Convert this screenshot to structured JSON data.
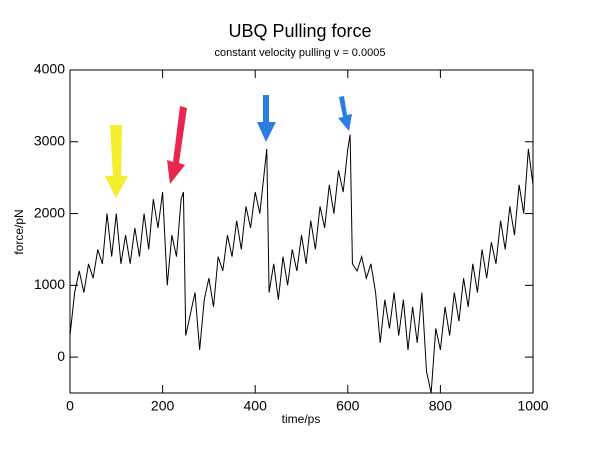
{
  "chart_data": {
    "type": "line",
    "title": "UBQ Pulling force",
    "subtitle": "constant velocity pulling v = 0.0005",
    "x_label": "time/ps",
    "y_label": "force/pN",
    "color": "#000000",
    "x": [
      0,
      10,
      20,
      30,
      40,
      50,
      60,
      70,
      80,
      90,
      100,
      110,
      120,
      130,
      140,
      150,
      160,
      170,
      180,
      190,
      200,
      210,
      220,
      230,
      240,
      245,
      250,
      260,
      270,
      280,
      290,
      300,
      310,
      320,
      330,
      340,
      350,
      360,
      370,
      380,
      390,
      400,
      410,
      420,
      425,
      430,
      440,
      450,
      460,
      470,
      480,
      490,
      500,
      510,
      520,
      530,
      540,
      550,
      560,
      570,
      580,
      590,
      600,
      605,
      610,
      620,
      630,
      640,
      650,
      660,
      670,
      680,
      690,
      700,
      710,
      720,
      730,
      740,
      750,
      760,
      770,
      780,
      790,
      800,
      810,
      820,
      830,
      840,
      850,
      860,
      870,
      880,
      890,
      900,
      910,
      920,
      930,
      940,
      950,
      960,
      970,
      980,
      990,
      1000
    ],
    "values": [
      300,
      900,
      1200,
      900,
      1300,
      1100,
      1500,
      1300,
      2000,
      1400,
      2000,
      1300,
      1700,
      1300,
      1800,
      1400,
      2000,
      1500,
      2200,
      1800,
      2300,
      1000,
      1700,
      1400,
      2200,
      2300,
      300,
      600,
      900,
      100,
      800,
      1100,
      700,
      1400,
      1200,
      1700,
      1400,
      1900,
      1500,
      2100,
      1800,
      2300,
      2000,
      2600,
      2900,
      900,
      1300,
      800,
      1400,
      1000,
      1500,
      1200,
      1700,
      1300,
      1900,
      1500,
      2100,
      1800,
      2400,
      2000,
      2600,
      2300,
      2900,
      3100,
      1300,
      1200,
      1400,
      1100,
      1300,
      900,
      200,
      800,
      400,
      900,
      300,
      800,
      100,
      700,
      200,
      900,
      -200,
      -500,
      400,
      100,
      700,
      300,
      900,
      500,
      1100,
      700,
      1300,
      900,
      1500,
      1100,
      1600,
      1300,
      1900,
      1500,
      2100,
      1700,
      2400,
      2000,
      2900,
      2400
    ],
    "xlim": [
      0,
      1000
    ],
    "ylim": [
      -500,
      4000
    ],
    "xticks": [
      0,
      200,
      400,
      600,
      800,
      1000
    ],
    "yticks": [
      0,
      1000,
      2000,
      3000,
      4000
    ]
  }
}
